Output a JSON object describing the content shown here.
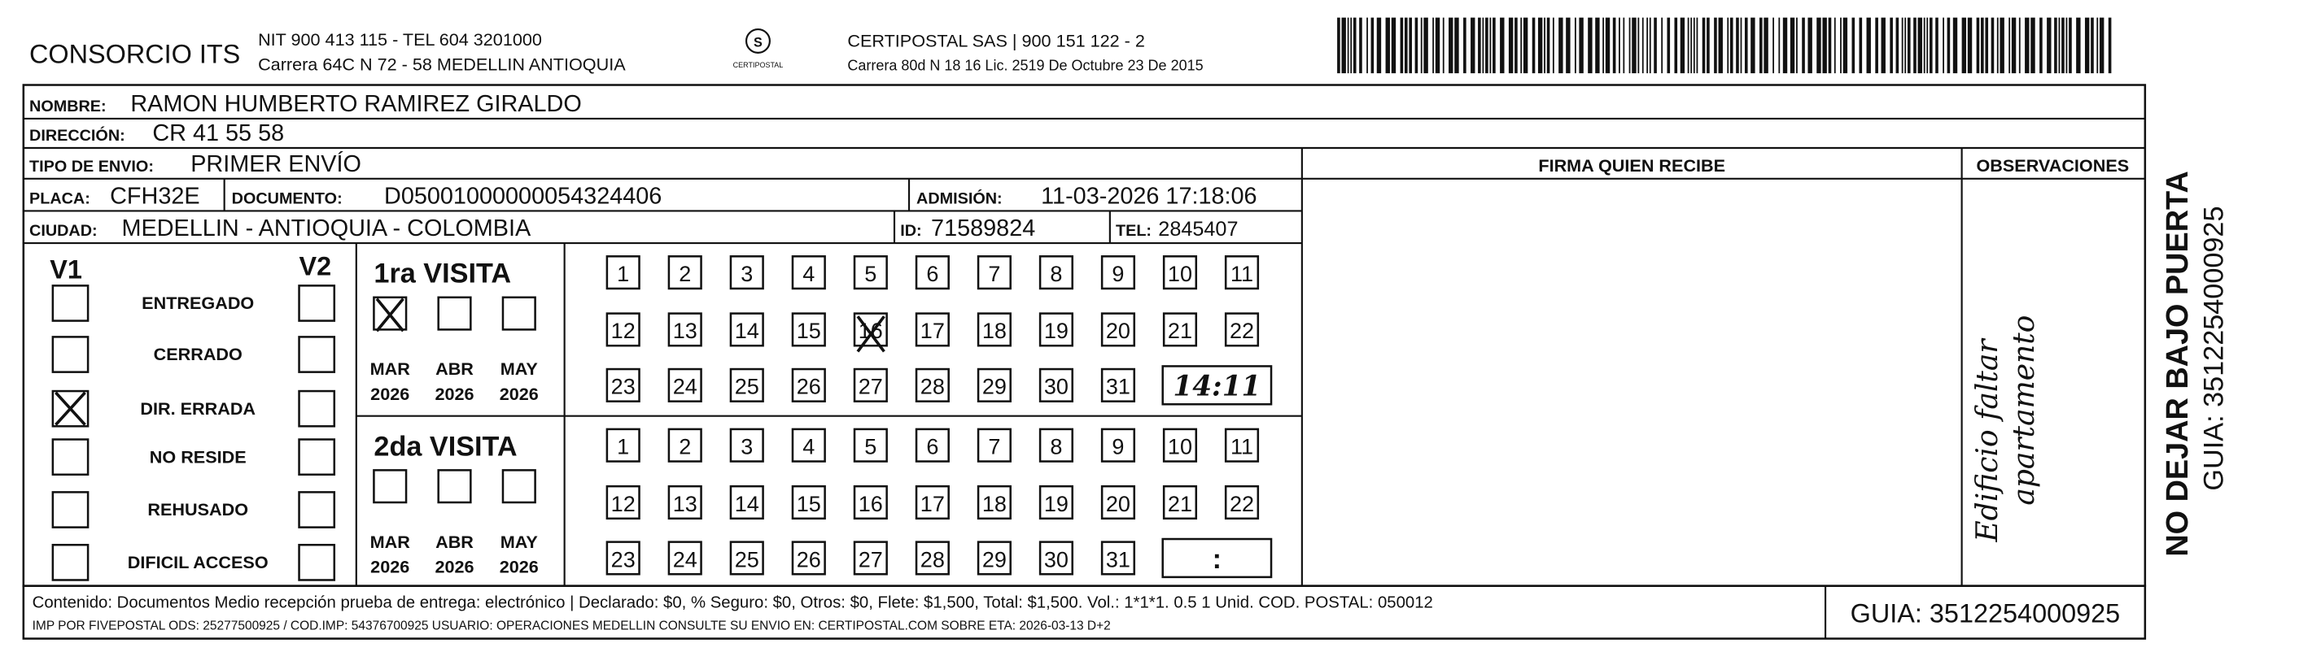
{
  "header": {
    "company": "CONSORCIO ITS",
    "nit": "NIT 900 413 115 - TEL 604 3201000",
    "address": "Carrera 64C N 72 - 58 MEDELLIN ANTIOQUIA",
    "logo_text": "CERTIPOSTAL",
    "carrier": "CERTIPOSTAL SAS | 900 151 122 - 2",
    "carrier_address": "Carrera 80d N 18 16  Lic. 2519 De Octubre 23 De 2015"
  },
  "recipient": {
    "name_label": "NOMBRE:",
    "name": "RAMON HUMBERTO RAMIREZ GIRALDO",
    "address_label": "DIRECCIÓN:",
    "address": "CR 41 55 58",
    "ship_type_label": "TIPO DE ENVIO:",
    "ship_type": "PRIMER ENVÍO",
    "plate_label": "PLACA:",
    "plate": "CFH32E",
    "document_label": "DOCUMENTO:",
    "document": "D05001000000054324406",
    "admission_label": "ADMISIÓN:",
    "admission": "11-03-2026 17:18:06",
    "city_label": "CIUDAD:",
    "city": "MEDELLIN - ANTIOQUIA - COLOMBIA",
    "id_label": "ID:",
    "id": "71589824",
    "tel_label": "TEL:",
    "tel": "2845407"
  },
  "signature_header": "FIRMA QUIEN RECIBE",
  "observations_header": "OBSERVACIONES",
  "observations": [
    "Edificio faltar",
    "apartamento"
  ],
  "status": {
    "v1": "V1",
    "v2": "V2",
    "options": [
      "ENTREGADO",
      "CERRADO",
      "DIR. ERRADA",
      "NO RESIDE",
      "REHUSADO",
      "DIFICIL ACCESO"
    ]
  },
  "visits": [
    {
      "title": "1ra VISITA",
      "months": [
        "MAR",
        "ABR",
        "MAY"
      ],
      "years": [
        "2026",
        "2026",
        "2026"
      ],
      "days": [
        1,
        2,
        3,
        4,
        5,
        6,
        7,
        8,
        9,
        10,
        11,
        12,
        13,
        14,
        15,
        16,
        17,
        18,
        19,
        20,
        21,
        22,
        23,
        24,
        25,
        26,
        27,
        28,
        29,
        30,
        31
      ],
      "time": "14:11"
    },
    {
      "title": "2da VISITA",
      "months": [
        "MAR",
        "ABR",
        "MAY"
      ],
      "years": [
        "2026",
        "2026",
        "2026"
      ],
      "days": [
        1,
        2,
        3,
        4,
        5,
        6,
        7,
        8,
        9,
        10,
        11,
        12,
        13,
        14,
        15,
        16,
        17,
        18,
        19,
        20,
        21,
        22,
        23,
        24,
        25,
        26,
        27,
        28,
        29,
        30,
        31
      ],
      "time": ":"
    }
  ],
  "footer": {
    "contents": "Contenido: Documentos Medio recepción prueba de entrega: electrónico | Declarado: $0, % Seguro: $0, Otros: $0, Flete: $1,500, Total: $1,500. Vol.: 1*1*1. 0.5  1 Unid. COD. POSTAL: 050012",
    "imp": "IMP POR FIVEPOSTAL ODS: 25277500925 / COD.IMP: 54376700925 USUARIO: OPERACIONES MEDELLIN CONSULTE SU ENVIO EN: CERTIPOSTAL.COM SOBRE ETA: 2026-03-13 D+2",
    "guide": "GUIA: 3512254000925"
  },
  "side": {
    "warning": "NO DEJAR BAJO PUERTA",
    "guide": "GUIA: 3512254000925"
  }
}
